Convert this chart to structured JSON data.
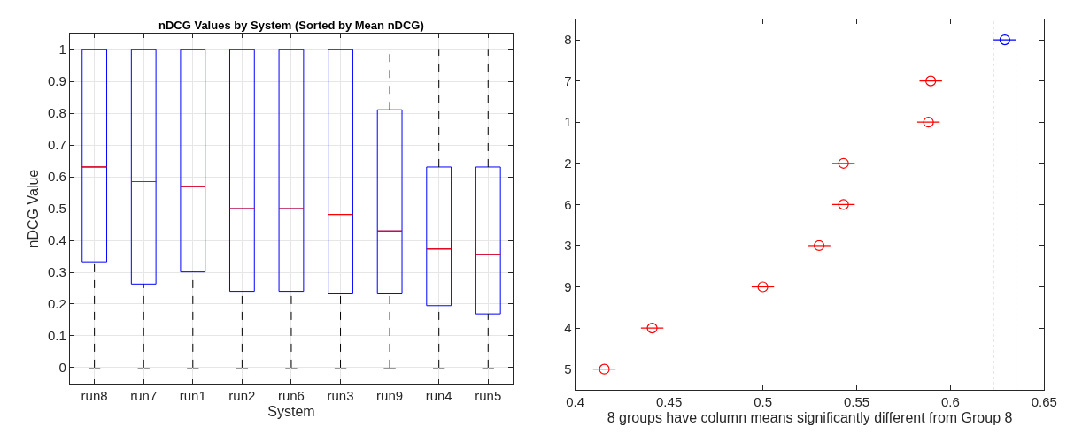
{
  "chart_data": [
    {
      "type": "box",
      "title": "nDCG Values by System (Sorted by Mean nDCG)",
      "xlabel": "System",
      "ylabel": "nDCG Value",
      "categories": [
        "run8",
        "run7",
        "run1",
        "run2",
        "run6",
        "run3",
        "run9",
        "run4",
        "run5"
      ],
      "series": [
        {
          "color": "#0000ff",
          "boxes": [
            {
              "low": 0,
              "q1": 0.333,
              "median": 0.631,
              "q3": 1,
              "high": 1
            },
            {
              "low": 0,
              "q1": 0.263,
              "median": 0.585,
              "q3": 1,
              "high": 1
            },
            {
              "low": 0,
              "q1": 0.301,
              "median": 0.57,
              "q3": 1,
              "high": 1
            },
            {
              "low": 0,
              "q1": 0.24,
              "median": 0.5,
              "q3": 1,
              "high": 1
            },
            {
              "low": 0,
              "q1": 0.24,
              "median": 0.5,
              "q3": 1,
              "high": 1
            },
            {
              "low": 0,
              "q1": 0.232,
              "median": 0.482,
              "q3": 1,
              "high": 1
            },
            {
              "low": 0,
              "q1": 0.232,
              "median": 0.43,
              "q3": 0.811,
              "high": 1
            },
            {
              "low": 0,
              "q1": 0.195,
              "median": 0.373,
              "q3": 0.631,
              "high": 1
            },
            {
              "low": 0,
              "q1": 0.169,
              "median": 0.356,
              "q3": 0.631,
              "high": 1
            }
          ]
        }
      ],
      "ylim": [
        -0.05,
        1.05
      ],
      "yticks": [
        0,
        0.1,
        0.2,
        0.3,
        0.4,
        0.5,
        0.6,
        0.7,
        0.8,
        0.9,
        1
      ],
      "grid": true
    },
    {
      "type": "scatter",
      "orientation": "horizontal",
      "xlabel": "8 groups have column means significantly different from Group 8",
      "categories": [
        "8",
        "7",
        "1",
        "2",
        "6",
        "3",
        "9",
        "4",
        "5"
      ],
      "values": [
        0.629,
        0.5895,
        0.5883,
        0.543,
        0.543,
        0.53,
        0.5,
        0.441,
        0.4155
      ],
      "errors": [
        0.006,
        0.006,
        0.006,
        0.006,
        0.006,
        0.006,
        0.006,
        0.006,
        0.006
      ],
      "colors": [
        "#0000ff",
        "#ff0000",
        "#ff0000",
        "#ff0000",
        "#ff0000",
        "#ff0000",
        "#ff0000",
        "#ff0000",
        "#ff0000"
      ],
      "marker": "circle",
      "xlim": [
        0.4,
        0.65
      ],
      "xticks": [
        0.4,
        0.45,
        0.5,
        0.55,
        0.6,
        0.65
      ],
      "ref_lines": [
        {
          "axis": "x",
          "value": 0.623,
          "color": "#d9d9d9",
          "line_style": "dotted"
        },
        {
          "axis": "x",
          "value": 0.635,
          "color": "#d9d9d9",
          "line_style": "dotted"
        }
      ],
      "grid": false
    }
  ]
}
